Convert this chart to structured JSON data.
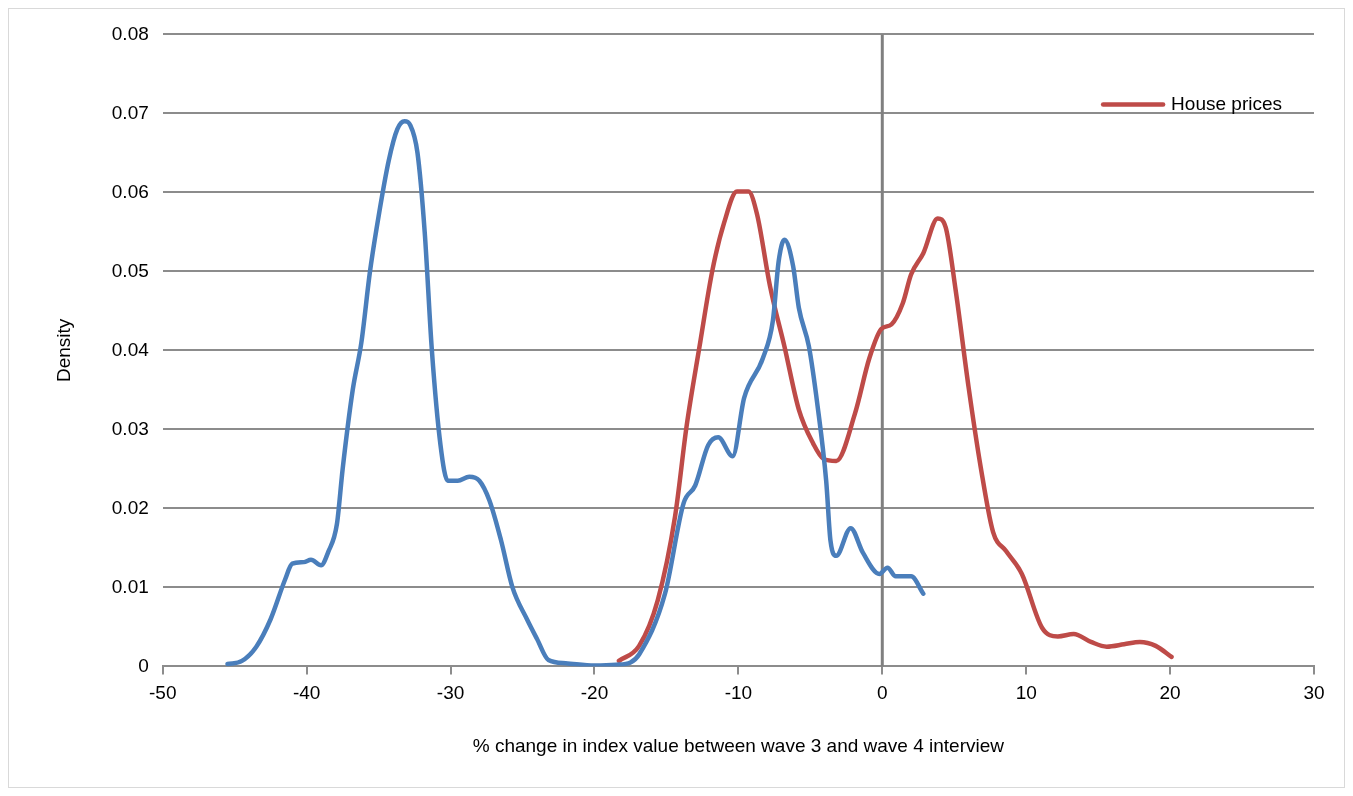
{
  "chart_data": {
    "type": "line",
    "xlabel": "% change in index value between wave 3 and wave 4 interview",
    "ylabel": "Density",
    "xlim": [
      -50,
      30
    ],
    "xticks": [
      -50,
      -40,
      -30,
      -20,
      -10,
      0,
      10,
      20,
      30
    ],
    "ylim": [
      0,
      0.08
    ],
    "yticks": [
      0,
      0.01,
      0.02,
      0.03,
      0.04,
      0.05,
      0.06,
      0.07,
      0.08
    ],
    "grid": "y",
    "legend": "top right",
    "marker": "none",
    "line_style": "solid",
    "ref_lines": [
      {
        "axis": "x",
        "value": 0,
        "color": "#808080"
      }
    ],
    "series": [
      {
        "color": "#4a7ebb",
        "x": [
          -45.5,
          -44.5,
          -43.5,
          -42.5,
          -41.5,
          -41,
          -40.2,
          -39.7,
          -39,
          -38.5,
          -37.9,
          -37.5,
          -36.8,
          -36.2,
          -35.6,
          -35,
          -34.3,
          -33.7,
          -33.2,
          -32.8,
          -32.3,
          -31.8,
          -31.3,
          -30.7,
          -30.2,
          -29.5,
          -28.7,
          -28,
          -27.3,
          -26.5,
          -25.7,
          -24.7,
          -24,
          -23.2,
          -22,
          -20,
          -18.5,
          -17.5,
          -16.9,
          -15.1,
          -13.8,
          -13,
          -12.1,
          -11.4,
          -10.4,
          -9.6,
          -8.3,
          -7.6,
          -7.2,
          -6.8,
          -6.2,
          -5.8,
          -5.1,
          -4.5,
          -3.9,
          -3.6,
          -3.2,
          -2.2,
          -1.35,
          -0.2,
          0.36,
          0.93,
          2,
          2.85
        ],
        "values": [
          0.0003,
          0.0007,
          0.0025,
          0.006,
          0.011,
          0.013,
          0.0132,
          0.0135,
          0.0128,
          0.0145,
          0.018,
          0.025,
          0.035,
          0.041,
          0.05,
          0.057,
          0.064,
          0.068,
          0.069,
          0.0685,
          0.065,
          0.055,
          0.04,
          0.028,
          0.0235,
          0.0235,
          0.024,
          0.0235,
          0.021,
          0.016,
          0.01,
          0.006,
          0.0035,
          0.0008,
          0.0004,
          0.0001,
          0.0002,
          0.0005,
          0.0015,
          0.0092,
          0.0207,
          0.0229,
          0.028,
          0.029,
          0.0266,
          0.034,
          0.039,
          0.0438,
          0.0513,
          0.054,
          0.0507,
          0.0454,
          0.0405,
          0.033,
          0.0235,
          0.0159,
          0.014,
          0.0175,
          0.0144,
          0.0117,
          0.0125,
          0.0114,
          0.0114,
          0.0092
        ]
      },
      {
        "name": "House prices",
        "color": "#be4b48",
        "x": [
          -18.3,
          -16.9,
          -15.6,
          -14.4,
          -13.6,
          -12.7,
          -11.8,
          -11,
          -10.1,
          -9.3,
          -8.7,
          -7.8,
          -6.8,
          -5.8,
          -4.8,
          -4.1,
          -3.2,
          -1.9,
          -0.9,
          -0.07,
          0.64,
          1.43,
          2,
          2.85,
          3.85,
          4.4,
          5.1,
          6,
          6.85,
          7.7,
          8.6,
          9.7,
          11.1,
          12.2,
          13.3,
          14.5,
          15.6,
          16.8,
          17.9,
          19,
          20.1
        ],
        "values": [
          0.0007,
          0.0026,
          0.0084,
          0.019,
          0.0304,
          0.0405,
          0.0502,
          0.0561,
          0.0601,
          0.0601,
          0.0572,
          0.0481,
          0.0405,
          0.0325,
          0.0282,
          0.0263,
          0.026,
          0.032,
          0.039,
          0.0427,
          0.0433,
          0.046,
          0.0496,
          0.0523,
          0.0567,
          0.0556,
          0.0476,
          0.0353,
          0.0251,
          0.017,
          0.0146,
          0.0117,
          0.0049,
          0.0038,
          0.0041,
          0.0031,
          0.0025,
          0.0028,
          0.0031,
          0.0026,
          0.0012
        ]
      }
    ]
  }
}
